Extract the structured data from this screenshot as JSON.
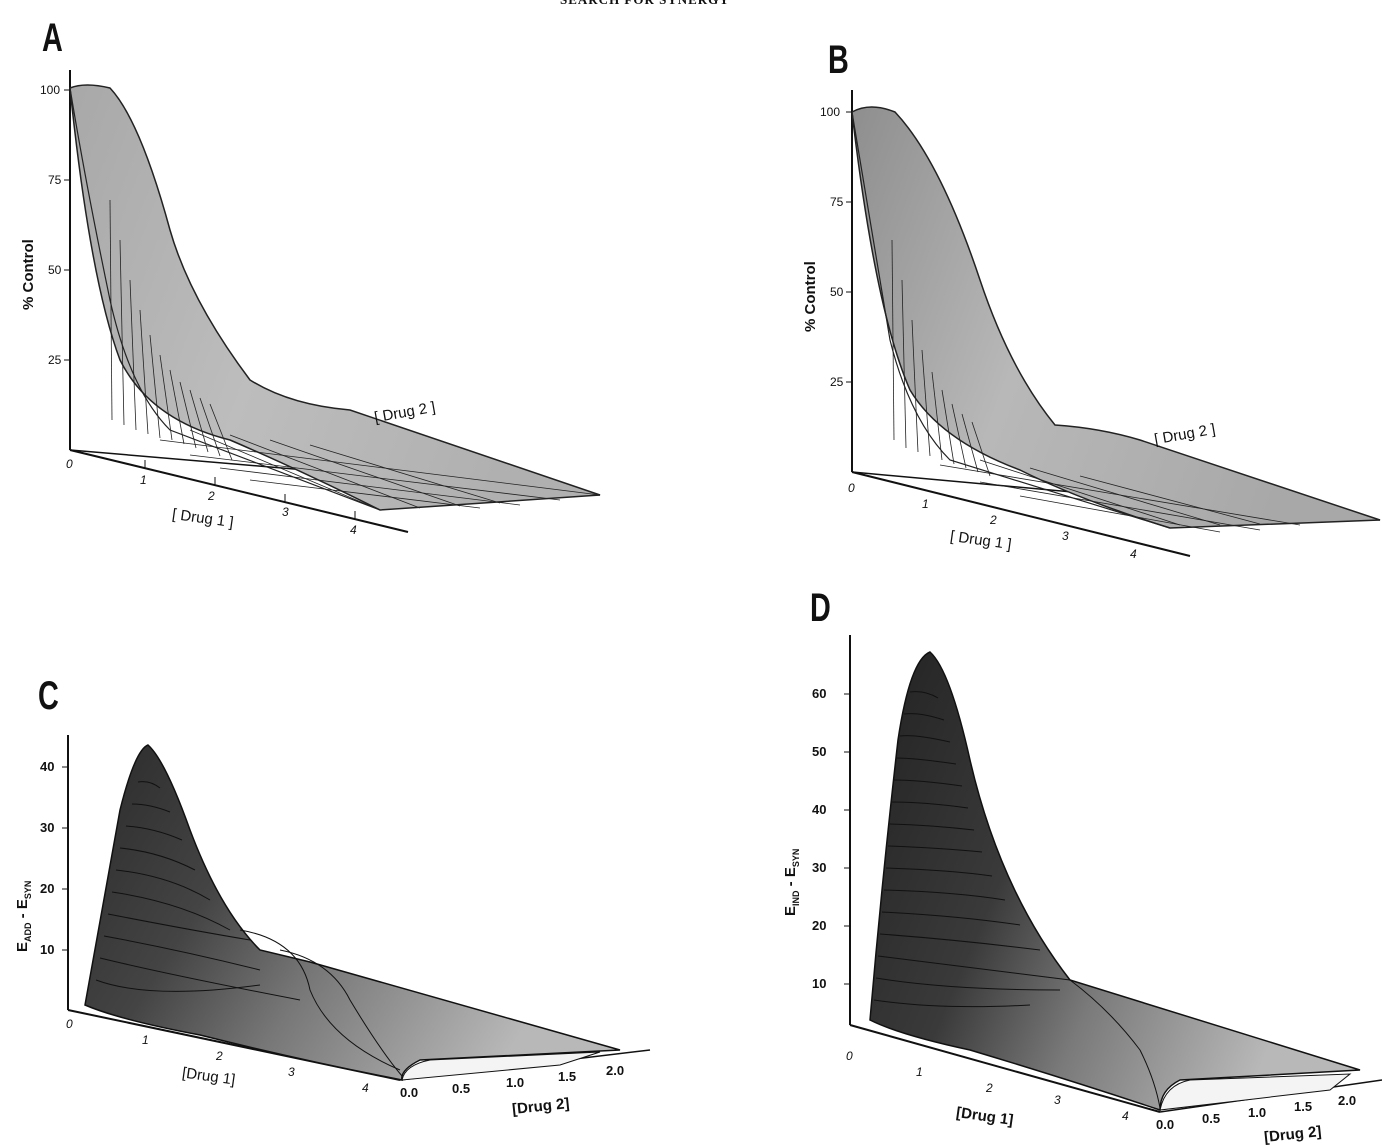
{
  "header_text": "SEARCH FOR SYNERGY",
  "chart_data": [
    {
      "panel": "A",
      "type": "surface3d",
      "ylabel": "% Control",
      "yticks": [
        "100",
        "75",
        "50",
        "25"
      ],
      "xlabel": "[ Drug 1 ]",
      "xticks": [
        "0",
        "1",
        "2",
        "3",
        "4"
      ],
      "zlabel": "[ Drug 2 ]",
      "description_values": {
        "max": 100,
        "min": 0
      }
    },
    {
      "panel": "B",
      "type": "surface3d",
      "ylabel": "% Control",
      "yticks": [
        "100",
        "75",
        "50",
        "25"
      ],
      "xlabel": "[ Drug 1 ]",
      "xticks": [
        "0",
        "1",
        "2",
        "3",
        "4"
      ],
      "zlabel": "[ Drug 2 ]"
    },
    {
      "panel": "C",
      "type": "surface3d",
      "ylabel_main": "E",
      "ylabel_sub1": "ADD",
      "ylabel_mid": " - E",
      "ylabel_sub2": "SYN",
      "yticks": [
        "40",
        "30",
        "20",
        "10"
      ],
      "xlabel": "[Drug 1]",
      "xticks": [
        "0",
        "1",
        "2",
        "3",
        "4"
      ],
      "zlabel": "[Drug 2]",
      "zticks": [
        "0.0",
        "0.5",
        "1.0",
        "1.5",
        "2.0"
      ]
    },
    {
      "panel": "D",
      "type": "surface3d",
      "ylabel_main": "E",
      "ylabel_sub1": "IND",
      "ylabel_mid": " - E",
      "ylabel_sub2": "SYN",
      "yticks": [
        "60",
        "50",
        "40",
        "30",
        "20",
        "10"
      ],
      "xlabel": "[Drug 1]",
      "xticks": [
        "0",
        "1",
        "2",
        "3",
        "4"
      ],
      "zlabel": "[Drug 2]",
      "zticks": [
        "0.0",
        "0.5",
        "1.0",
        "1.5",
        "2.0"
      ]
    }
  ]
}
